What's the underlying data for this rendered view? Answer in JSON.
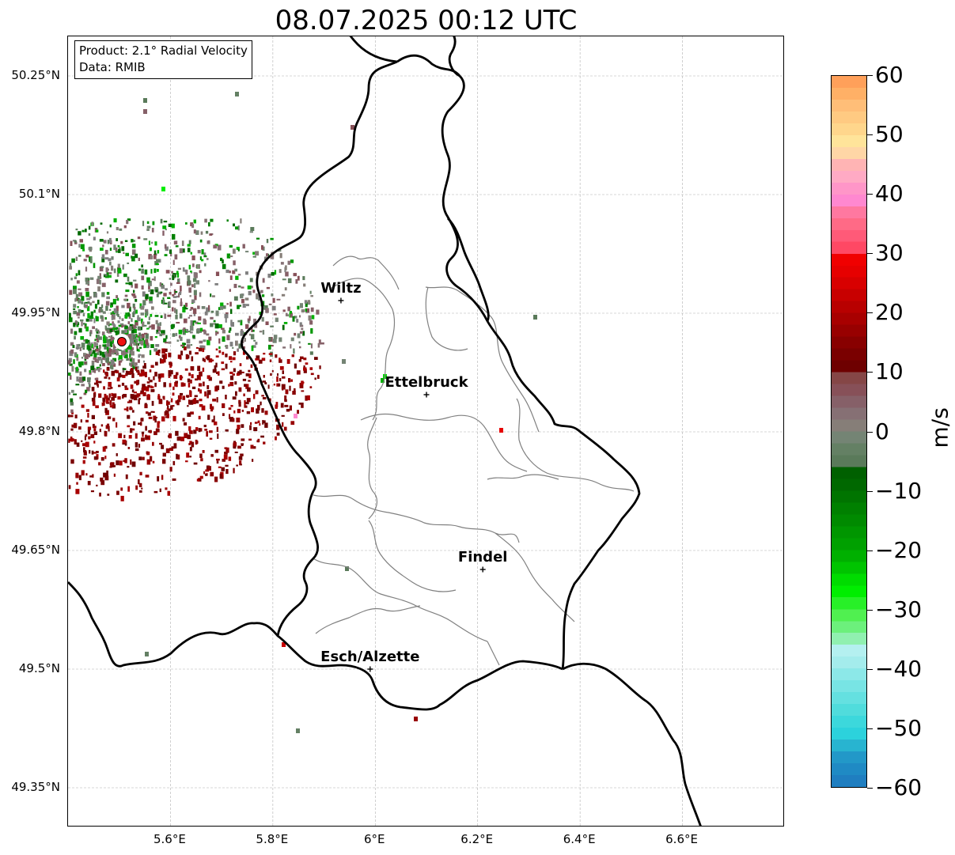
{
  "title": "08.07.2025 00:12 UTC",
  "info_box": {
    "product": "Product: 2.1° Radial Velocity",
    "data": "Data: RMIB"
  },
  "map": {
    "lon_range": [
      5.4,
      6.8
    ],
    "lat_range": [
      49.3,
      50.3
    ],
    "gridlines": true,
    "lat_labels": [
      "50.25°N",
      "50.1°N",
      "49.95°N",
      "49.8°N",
      "49.65°N",
      "49.5°N",
      "49.35°N"
    ],
    "lat_values": [
      50.25,
      50.1,
      49.95,
      49.8,
      49.65,
      49.5,
      49.35
    ],
    "lon_labels": [
      "5.6°E",
      "5.8°E",
      "6°E",
      "6.2°E",
      "6.4°E",
      "6.6°E"
    ],
    "lon_values": [
      5.6,
      5.8,
      6.0,
      6.2,
      6.4,
      6.6
    ],
    "radar_site": {
      "lon": 5.505,
      "lat": 49.914
    },
    "cities": [
      {
        "name": "Wiltz",
        "lon": 5.933,
        "lat": 49.966
      },
      {
        "name": "Ettelbruck",
        "lon": 6.1,
        "lat": 49.847
      },
      {
        "name": "Findel",
        "lon": 6.21,
        "lat": 49.626
      },
      {
        "name": "Esch/Alzette",
        "lon": 5.99,
        "lat": 49.5
      }
    ]
  },
  "colorbar": {
    "unit": "m/s",
    "min": -60,
    "max": 60,
    "ticks": [
      "60",
      "50",
      "40",
      "30",
      "20",
      "10",
      "0",
      "−10",
      "−20",
      "−30",
      "−40",
      "−50",
      "−60"
    ],
    "tick_values": [
      60,
      50,
      40,
      30,
      20,
      10,
      0,
      -10,
      -20,
      -30,
      -40,
      -50,
      -60
    ],
    "colors_top_to_bottom": [
      "#ffa05a",
      "#ffb066",
      "#ffbe78",
      "#ffca82",
      "#ffd68c",
      "#ffe49a",
      "#ffd6a6",
      "#ffb4b4",
      "#ffaac4",
      "#ff96c8",
      "#ff88d0",
      "#ff78a0",
      "#ff6a86",
      "#ff5a78",
      "#ff4864",
      "#f00000",
      "#e60000",
      "#d80000",
      "#c80000",
      "#b80000",
      "#a80000",
      "#980000",
      "#880000",
      "#7a0000",
      "#6e0000",
      "#854646",
      "#875058",
      "#866068",
      "#867074",
      "#867e78",
      "#748474",
      "#648064",
      "#5a7a5a",
      "#006000",
      "#006800",
      "#007400",
      "#008000",
      "#008a00",
      "#009600",
      "#00a000",
      "#00b000",
      "#00c400",
      "#00dc00",
      "#00ee00",
      "#28f028",
      "#50f050",
      "#6cf07c",
      "#90f0b0",
      "#b4f0f0",
      "#a4ecec",
      "#8ce8e8",
      "#78e4e4",
      "#64e0e0",
      "#50dcdc",
      "#3cd8dc",
      "#2cd2dc",
      "#28b4d0",
      "#2298c8",
      "#1f8ac4",
      "#1f7ec0"
    ]
  }
}
